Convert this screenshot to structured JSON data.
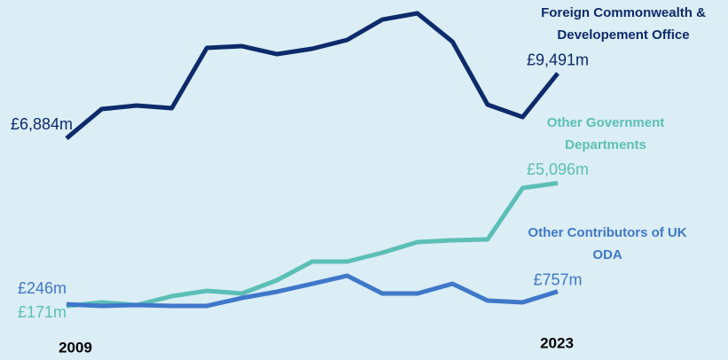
{
  "chart_data": {
    "type": "line",
    "categories": [
      "2009",
      null,
      null,
      null,
      null,
      null,
      null,
      null,
      null,
      null,
      null,
      null,
      null,
      null,
      "2023"
    ],
    "ylim": [
      0,
      12000
    ],
    "series": [
      {
        "name": "Foreign Commonwealth & Developement Office",
        "color": "#0d2a6b",
        "values": [
          6884,
          8058,
          8200,
          8094,
          10508,
          10579,
          10260,
          10473,
          10828,
          11644,
          11893,
          10757,
          8236,
          7739,
          9491
        ],
        "value_labels": [
          "£6,884m",
          null,
          null,
          null,
          null,
          null,
          null,
          null,
          null,
          null,
          null,
          null,
          null,
          null,
          "£9,491m"
        ]
      },
      {
        "name": "Other Government Departments",
        "color": "#5cbfb5",
        "values": [
          171,
          320,
          213,
          568,
          781,
          675,
          1207,
          1953,
          1953,
          2308,
          2734,
          2805,
          2840,
          4899,
          5096
        ],
        "value_labels": [
          "£171m",
          null,
          null,
          null,
          null,
          null,
          null,
          null,
          null,
          null,
          null,
          null,
          null,
          null,
          "£5,096m"
        ]
      },
      {
        "name": "Other Contributors of UK ODA",
        "color": "#3f78c9",
        "values": [
          246,
          178,
          213,
          178,
          178,
          497,
          746,
          1065,
          1385,
          675,
          675,
          1065,
          391,
          320,
          757
        ],
        "value_labels": [
          "£246m",
          null,
          null,
          null,
          null,
          null,
          null,
          null,
          null,
          null,
          null,
          null,
          null,
          null,
          "£757m"
        ]
      }
    ]
  }
}
